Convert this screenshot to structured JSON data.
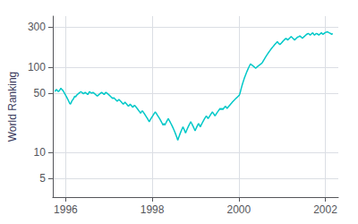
{
  "chart_data": {
    "type": "line",
    "ylabel": "World Ranking",
    "color": "#00c8c8",
    "log": "y",
    "grid": true,
    "xlim": [
      1995.7,
      2002.3
    ],
    "ylim": [
      3,
      400
    ],
    "xticks": [
      1996,
      1998,
      2000,
      2002
    ],
    "yticks": [
      5,
      10,
      50,
      100,
      300
    ],
    "x": [
      1995.75,
      1995.77,
      1995.79,
      1995.81,
      1995.83,
      1995.85,
      1995.87,
      1995.89,
      1995.91,
      1995.93,
      1995.95,
      1995.97,
      1995.99,
      1996.01,
      1996.03,
      1996.05,
      1996.07,
      1996.09,
      1996.11,
      1996.13,
      1996.15,
      1996.17,
      1996.19,
      1996.21,
      1996.23,
      1996.25,
      1996.27,
      1996.29,
      1996.31,
      1996.33,
      1996.35,
      1996.37,
      1996.39,
      1996.41,
      1996.43,
      1996.45,
      1996.47,
      1996.49,
      1996.51,
      1996.53,
      1996.55,
      1996.57,
      1996.59,
      1996.61,
      1996.63,
      1996.65,
      1996.67,
      1996.69,
      1996.71,
      1996.73,
      1996.75,
      1996.77,
      1996.79,
      1996.81,
      1996.83,
      1996.85,
      1996.87,
      1996.89,
      1996.91,
      1996.93,
      1996.95,
      1996.97,
      1996.99,
      1997.01,
      1997.03,
      1997.05,
      1997.07,
      1997.09,
      1997.11,
      1997.13,
      1997.15,
      1997.17,
      1997.19,
      1997.21,
      1997.23,
      1997.25,
      1997.27,
      1997.29,
      1997.31,
      1997.33,
      1997.35,
      1997.37,
      1997.39,
      1997.41,
      1997.43,
      1997.45,
      1997.47,
      1997.49,
      1997.51,
      1997.53,
      1997.55,
      1997.57,
      1997.59,
      1997.61,
      1997.63,
      1997.65,
      1997.67,
      1997.69,
      1997.71,
      1997.73,
      1997.75,
      1997.77,
      1997.79,
      1997.81,
      1997.83,
      1997.85,
      1997.87,
      1997.89,
      1997.91,
      1997.93,
      1997.95,
      1997.97,
      1997.99,
      1998.01,
      1998.03,
      1998.05,
      1998.07,
      1998.09,
      1998.11,
      1998.13,
      1998.15,
      1998.17,
      1998.19,
      1998.21,
      1998.23,
      1998.25,
      1998.27,
      1998.29,
      1998.31,
      1998.33,
      1998.35,
      1998.37,
      1998.39,
      1998.41,
      1998.43,
      1998.45,
      1998.47,
      1998.49,
      1998.51,
      1998.53,
      1998.55,
      1998.57,
      1998.59,
      1998.61,
      1998.63,
      1998.65,
      1998.67,
      1998.69,
      1998.71,
      1998.73,
      1998.75,
      1998.77,
      1998.79,
      1998.81,
      1998.83,
      1998.85,
      1998.87,
      1998.89,
      1998.91,
      1998.93,
      1998.95,
      1998.97,
      1998.99,
      1999.01,
      1999.03,
      1999.05,
      1999.07,
      1999.09,
      1999.11,
      1999.13,
      1999.15,
      1999.17,
      1999.19,
      1999.21,
      1999.23,
      1999.25,
      1999.27,
      1999.29,
      1999.31,
      1999.33,
      1999.35,
      1999.37,
      1999.39,
      1999.41,
      1999.43,
      1999.45,
      1999.47,
      1999.49,
      1999.51,
      1999.53,
      1999.55,
      1999.57,
      1999.59,
      1999.61,
      1999.63,
      1999.65,
      1999.67,
      1999.69,
      1999.71,
      1999.73,
      1999.75,
      1999.77,
      1999.79,
      1999.81,
      1999.83,
      1999.85,
      1999.87,
      1999.89,
      1999.91,
      1999.93,
      1999.95,
      1999.97,
      1999.99,
      2000.01,
      2000.03,
      2000.05,
      2000.07,
      2000.09,
      2000.11,
      2000.13,
      2000.15,
      2000.17,
      2000.19,
      2000.21,
      2000.23,
      2000.25,
      2000.27,
      2000.29,
      2000.31,
      2000.33,
      2000.35,
      2000.37,
      2000.39,
      2000.41,
      2000.43,
      2000.45,
      2000.47,
      2000.49,
      2000.51,
      2000.53,
      2000.55,
      2000.57,
      2000.59,
      2000.61,
      2000.63,
      2000.65,
      2000.67,
      2000.69,
      2000.71,
      2000.73,
      2000.75,
      2000.77,
      2000.79,
      2000.81,
      2000.83,
      2000.85,
      2000.87,
      2000.89,
      2000.91,
      2000.93,
      2000.95,
      2000.97,
      2000.99,
      2001.01,
      2001.03,
      2001.05,
      2001.07,
      2001.09,
      2001.11,
      2001.13,
      2001.15,
      2001.17,
      2001.19,
      2001.21,
      2001.23,
      2001.25,
      2001.27,
      2001.29,
      2001.31,
      2001.33,
      2001.35,
      2001.37,
      2001.39,
      2001.41,
      2001.43,
      2001.45,
      2001.47,
      2001.49,
      2001.51,
      2001.53,
      2001.55,
      2001.57,
      2001.59,
      2001.61,
      2001.63,
      2001.65,
      2001.67,
      2001.69,
      2001.71,
      2001.73,
      2001.75,
      2001.77,
      2001.79,
      2001.81,
      2001.83,
      2001.85,
      2001.87,
      2001.89,
      2001.91,
      2001.93,
      2001.95,
      2001.97,
      2001.99,
      2002.01,
      2002.03,
      2002.05,
      2002.07,
      2002.09,
      2002.11,
      2002.13,
      2002.15,
      2002.17
    ],
    "values": [
      52,
      54,
      55,
      53,
      52,
      53,
      55,
      57,
      55,
      54,
      52,
      50,
      48,
      46,
      44,
      42,
      40,
      38,
      37,
      39,
      41,
      42,
      44,
      46,
      45,
      47,
      48,
      49,
      50,
      51,
      52,
      51,
      50,
      49,
      50,
      51,
      50,
      49,
      48,
      50,
      52,
      51,
      50,
      50,
      51,
      50,
      49,
      48,
      47,
      46,
      47,
      48,
      49,
      50,
      51,
      50,
      49,
      48,
      50,
      51,
      50,
      49,
      48,
      47,
      46,
      45,
      44,
      43,
      44,
      43,
      42,
      41,
      40,
      41,
      42,
      41,
      40,
      39,
      38,
      37,
      38,
      39,
      38,
      37,
      36,
      35,
      36,
      37,
      36,
      35,
      34,
      35,
      36,
      35,
      34,
      33,
      32,
      31,
      30,
      29,
      30,
      31,
      30,
      29,
      28,
      27,
      26,
      25,
      24,
      23,
      24,
      25,
      26,
      27,
      28,
      29,
      30,
      29,
      28,
      27,
      26,
      25,
      24,
      23,
      22,
      21,
      22,
      21,
      22,
      23,
      24,
      25,
      24,
      23,
      22,
      21,
      20,
      19,
      18,
      17,
      16,
      15,
      14,
      15,
      16,
      17,
      18,
      19,
      20,
      19,
      18,
      17,
      18,
      19,
      20,
      21,
      22,
      23,
      22,
      21,
      20,
      19,
      18,
      19,
      20,
      21,
      22,
      21,
      20,
      21,
      22,
      23,
      24,
      25,
      26,
      27,
      26,
      25,
      26,
      27,
      28,
      29,
      30,
      29,
      28,
      27,
      28,
      29,
      30,
      31,
      32,
      33,
      32,
      33,
      32,
      33,
      34,
      35,
      34,
      33,
      34,
      35,
      36,
      37,
      38,
      39,
      40,
      41,
      42,
      43,
      44,
      45,
      46,
      47,
      50,
      55,
      60,
      65,
      70,
      75,
      80,
      85,
      90,
      95,
      100,
      105,
      110,
      108,
      106,
      104,
      102,
      100,
      98,
      100,
      102,
      104,
      106,
      108,
      110,
      112,
      115,
      120,
      125,
      130,
      135,
      140,
      145,
      150,
      155,
      160,
      165,
      170,
      175,
      180,
      185,
      190,
      195,
      200,
      195,
      190,
      185,
      190,
      195,
      200,
      205,
      210,
      215,
      220,
      215,
      210,
      215,
      220,
      225,
      230,
      225,
      220,
      215,
      210,
      215,
      220,
      225,
      228,
      230,
      235,
      230,
      225,
      220,
      225,
      230,
      235,
      240,
      245,
      248,
      250,
      245,
      240,
      245,
      250,
      255,
      245,
      240,
      245,
      250,
      248,
      245,
      240,
      245,
      250,
      255,
      248,
      245,
      250,
      255,
      258,
      260,
      262,
      258,
      255,
      252,
      248,
      245,
      250
    ]
  }
}
